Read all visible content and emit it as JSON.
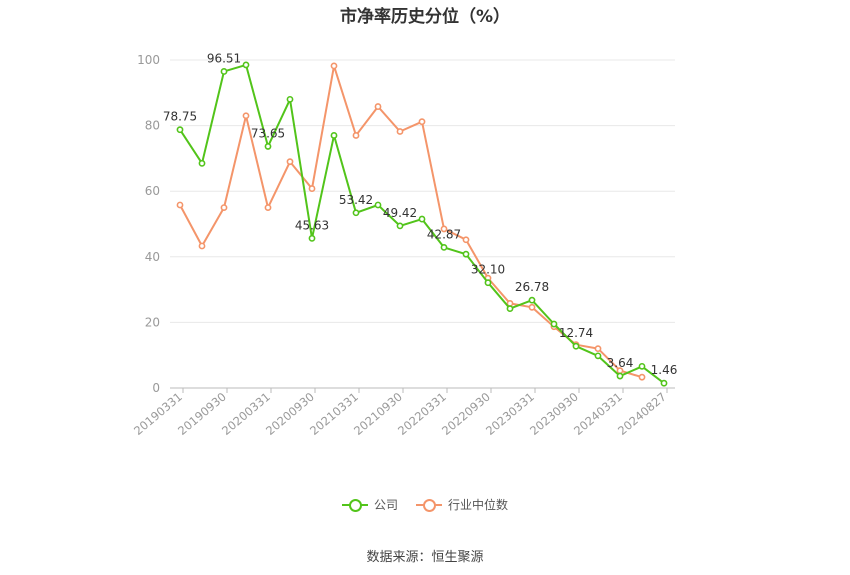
{
  "chart_data": {
    "type": "line",
    "title": "市净率历史分位（%）",
    "ylim": [
      0,
      100
    ],
    "y_ticks": [
      "0",
      "20",
      "40",
      "60",
      "80",
      "100"
    ],
    "x_tick_labels": [
      "20190331",
      "20190930",
      "20200331",
      "20200930",
      "20210331",
      "20210930",
      "20220331",
      "20220930",
      "20230331",
      "20230930",
      "20240331",
      "20240827"
    ],
    "grid": true,
    "legend_position": "bottom",
    "colors": {
      "company": "#52c41a",
      "industry": "#f4956a",
      "grid": "#e8e8e8",
      "axis": "#bbbbbb",
      "tick_text": "#999999"
    },
    "series": [
      {
        "name": "公司",
        "values": [
          78.75,
          68.5,
          96.51,
          98.5,
          73.65,
          88.0,
          45.63,
          77.0,
          53.42,
          55.8,
          49.42,
          51.5,
          42.87,
          40.8,
          32.1,
          24.2,
          26.78,
          19.5,
          12.74,
          9.8,
          3.64,
          6.6,
          1.46
        ],
        "labels": [
          "78.75",
          "",
          "96.51",
          "",
          "73.65",
          "",
          "45.63",
          "",
          "53.42",
          "",
          "49.42",
          "",
          "42.87",
          "",
          "32.10",
          "",
          "26.78",
          "",
          "12.74",
          "",
          "3.64",
          "",
          "1.46"
        ]
      },
      {
        "name": "行业中位数",
        "values": [
          55.8,
          43.3,
          55.0,
          83.0,
          55.0,
          69.0,
          60.8,
          98.2,
          77.0,
          85.8,
          78.2,
          81.2,
          48.5,
          45.2,
          33.5,
          25.8,
          24.6,
          18.7,
          13.2,
          12.0,
          5.3,
          3.3,
          null
        ]
      }
    ]
  },
  "legend": {
    "company": "公司",
    "industry": "行业中位数"
  },
  "footer": {
    "source": "数据来源：恒生聚源"
  }
}
